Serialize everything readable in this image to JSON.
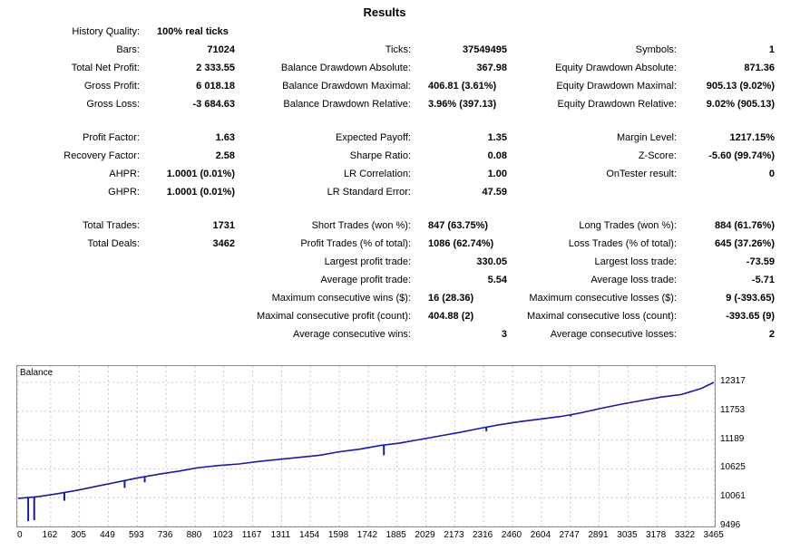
{
  "title": "Results",
  "history_quality": {
    "label": "History Quality:",
    "value": "100% real ticks"
  },
  "col1": [
    {
      "label": "Bars:",
      "value": "71024"
    },
    {
      "label": "Total Net Profit:",
      "value": "2 333.55"
    },
    {
      "label": "Gross Profit:",
      "value": "6 018.18"
    },
    {
      "label": "Gross Loss:",
      "value": "-3 684.63"
    },
    {
      "label": "Profit Factor:",
      "value": "1.63"
    },
    {
      "label": "Recovery Factor:",
      "value": "2.58"
    },
    {
      "label": "AHPR:",
      "value": "1.0001 (0.01%)"
    },
    {
      "label": "GHPR:",
      "value": "1.0001 (0.01%)"
    },
    {
      "label": "Total Trades:",
      "value": "1731"
    },
    {
      "label": "Total Deals:",
      "value": "3462"
    }
  ],
  "col2": [
    {
      "label": "Ticks:",
      "value": "37549495"
    },
    {
      "label": "Balance Drawdown Absolute:",
      "value": "367.98"
    },
    {
      "label": "Balance Drawdown Maximal:",
      "value": "406.81 (3.61%)"
    },
    {
      "label": "Balance Drawdown Relative:",
      "value": "3.96% (397.13)"
    },
    {
      "label": "Expected Payoff:",
      "value": "1.35"
    },
    {
      "label": "Sharpe Ratio:",
      "value": "0.08"
    },
    {
      "label": "LR Correlation:",
      "value": "1.00"
    },
    {
      "label": "LR Standard Error:",
      "value": "47.59"
    },
    {
      "label": "Short Trades (won %):",
      "value": "847 (63.75%)"
    },
    {
      "label": "Profit Trades (% of total):",
      "value": "1086 (62.74%)"
    },
    {
      "label": "Largest profit trade:",
      "value": "330.05"
    },
    {
      "label": "Average profit trade:",
      "value": "5.54"
    },
    {
      "label": "Maximum consecutive wins ($):",
      "value": "16 (28.36)"
    },
    {
      "label": "Maximal consecutive profit (count):",
      "value": "404.88 (2)"
    },
    {
      "label": "Average consecutive wins:",
      "value": "3"
    }
  ],
  "col3": [
    {
      "label": "Symbols:",
      "value": "1"
    },
    {
      "label": "Equity Drawdown Absolute:",
      "value": "871.36"
    },
    {
      "label": "Equity Drawdown Maximal:",
      "value": "905.13 (9.02%)"
    },
    {
      "label": "Equity Drawdown Relative:",
      "value": "9.02% (905.13)"
    },
    {
      "label": "Margin Level:",
      "value": "1217.15%"
    },
    {
      "label": "Z-Score:",
      "value": "-5.60 (99.74%)"
    },
    {
      "label": "OnTester result:",
      "value": "0"
    },
    {
      "label": "Long Trades (won %):",
      "value": "884 (61.76%)"
    },
    {
      "label": "Loss Trades (% of total):",
      "value": "645 (37.26%)"
    },
    {
      "label": "Largest loss trade:",
      "value": "-73.59"
    },
    {
      "label": "Average loss trade:",
      "value": "-5.71"
    },
    {
      "label": "Maximum consecutive losses ($):",
      "value": "9 (-393.65)"
    },
    {
      "label": "Maximal consecutive loss (count):",
      "value": "-393.65 (9)"
    },
    {
      "label": "Average consecutive losses:",
      "value": "2"
    }
  ],
  "chart_data": {
    "type": "line",
    "title": "Balance",
    "xlabel": "",
    "ylabel": "",
    "x_ticks": [
      "0",
      "162",
      "305",
      "449",
      "593",
      "736",
      "880",
      "1023",
      "1167",
      "1311",
      "1454",
      "1598",
      "1742",
      "1885",
      "2029",
      "2173",
      "2316",
      "2460",
      "2604",
      "2747",
      "2891",
      "3035",
      "3178",
      "3322",
      "3465"
    ],
    "y_ticks": [
      "12317",
      "11753",
      "11189",
      "10625",
      "10061",
      "9496"
    ],
    "xlim": [
      0,
      3462
    ],
    "ylim": [
      9496,
      12317
    ],
    "grid": true,
    "line_color": "#1a1aa0",
    "series": [
      {
        "x": [
          0,
          100,
          200,
          300,
          400,
          500,
          600,
          700,
          800,
          900,
          1000,
          1100,
          1200,
          1300,
          1400,
          1500,
          1600,
          1700,
          1800,
          1900,
          2000,
          2100,
          2200,
          2300,
          2400,
          2500,
          2600,
          2700,
          2800,
          2900,
          3000,
          3100,
          3200,
          3300,
          3400,
          3462
        ],
        "y": [
          10045,
          10080,
          10140,
          10210,
          10290,
          10370,
          10450,
          10520,
          10580,
          10650,
          10690,
          10720,
          10770,
          10810,
          10850,
          10890,
          10960,
          11010,
          11080,
          11130,
          11200,
          11270,
          11340,
          11420,
          11490,
          11550,
          11600,
          11650,
          11720,
          11810,
          11890,
          11960,
          12030,
          12080,
          12200,
          12317
        ]
      }
    ],
    "dips": [
      {
        "x": 50,
        "low": 9600
      },
      {
        "x": 80,
        "low": 9620
      },
      {
        "x": 230,
        "low": 10000
      },
      {
        "x": 530,
        "low": 10250
      },
      {
        "x": 630,
        "low": 10360
      },
      {
        "x": 1820,
        "low": 10890
      },
      {
        "x": 2330,
        "low": 11360
      },
      {
        "x": 2750,
        "low": 11650
      }
    ]
  }
}
